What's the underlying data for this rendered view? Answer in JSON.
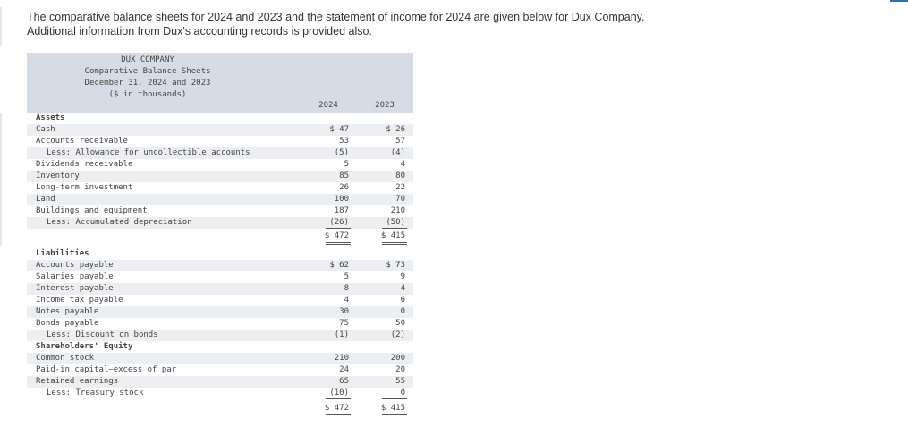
{
  "intro": {
    "line1": "The comparative balance sheets for 2024 and 2023 and the statement of income for 2024 are given below for Dux Company.",
    "line2": "Additional information from Dux's accounting records is provided also."
  },
  "header": {
    "company": "DUX COMPANY",
    "statement": "Comparative Balance Sheets",
    "date": "December 31, 2024 and 2023",
    "units": "($ in thousands)"
  },
  "columns": [
    "2024",
    "2023"
  ],
  "rows": [
    {
      "label": "Assets",
      "v2024": "",
      "v2023": ""
    },
    {
      "label": "Cash",
      "v2024": "$ 47",
      "v2023": "$ 26"
    },
    {
      "label": "Accounts receivable",
      "v2024": "53",
      "v2023": "57"
    },
    {
      "label": "Less: Allowance for uncollectible accounts",
      "v2024": "(5)",
      "v2023": "(4)"
    },
    {
      "label": "Dividends receivable",
      "v2024": "5",
      "v2023": "4"
    },
    {
      "label": "Inventory",
      "v2024": "85",
      "v2023": "80"
    },
    {
      "label": "Long-term investment",
      "v2024": "26",
      "v2023": "22"
    },
    {
      "label": "Land",
      "v2024": "100",
      "v2023": "70"
    },
    {
      "label": "Buildings and equipment",
      "v2024": "187",
      "v2023": "210"
    },
    {
      "label": "Less: Accumulated depreciation",
      "v2024": "(26)",
      "v2023": "(50)"
    },
    {
      "label": "",
      "v2024": "$ 472",
      "v2023": "$ 415"
    },
    {
      "label": "",
      "v2024": "",
      "v2023": ""
    },
    {
      "label": "Liabilities",
      "v2024": "",
      "v2023": ""
    },
    {
      "label": "Accounts payable",
      "v2024": "$ 62",
      "v2023": "$ 73"
    },
    {
      "label": "Salaries payable",
      "v2024": "5",
      "v2023": "9"
    },
    {
      "label": "Interest payable",
      "v2024": "8",
      "v2023": "4"
    },
    {
      "label": "Income tax payable",
      "v2024": "4",
      "v2023": "6"
    },
    {
      "label": "Notes payable",
      "v2024": "30",
      "v2023": "0"
    },
    {
      "label": "Bonds payable",
      "v2024": "75",
      "v2023": "50"
    },
    {
      "label": "Less: Discount on bonds",
      "v2024": "(1)",
      "v2023": "(2)"
    },
    {
      "label": "Shareholders' Equity",
      "v2024": "",
      "v2023": ""
    },
    {
      "label": "Common stock",
      "v2024": "210",
      "v2023": "200"
    },
    {
      "label": "Paid-in capital—excess of par",
      "v2024": "24",
      "v2023": "20"
    },
    {
      "label": "Retained earnings",
      "v2024": "65",
      "v2023": "55"
    },
    {
      "label": "Less: Treasury stock",
      "v2024": "(10)",
      "v2023": "0"
    },
    {
      "label": "",
      "v2024": "$ 472",
      "v2023": "$ 415"
    }
  ]
}
